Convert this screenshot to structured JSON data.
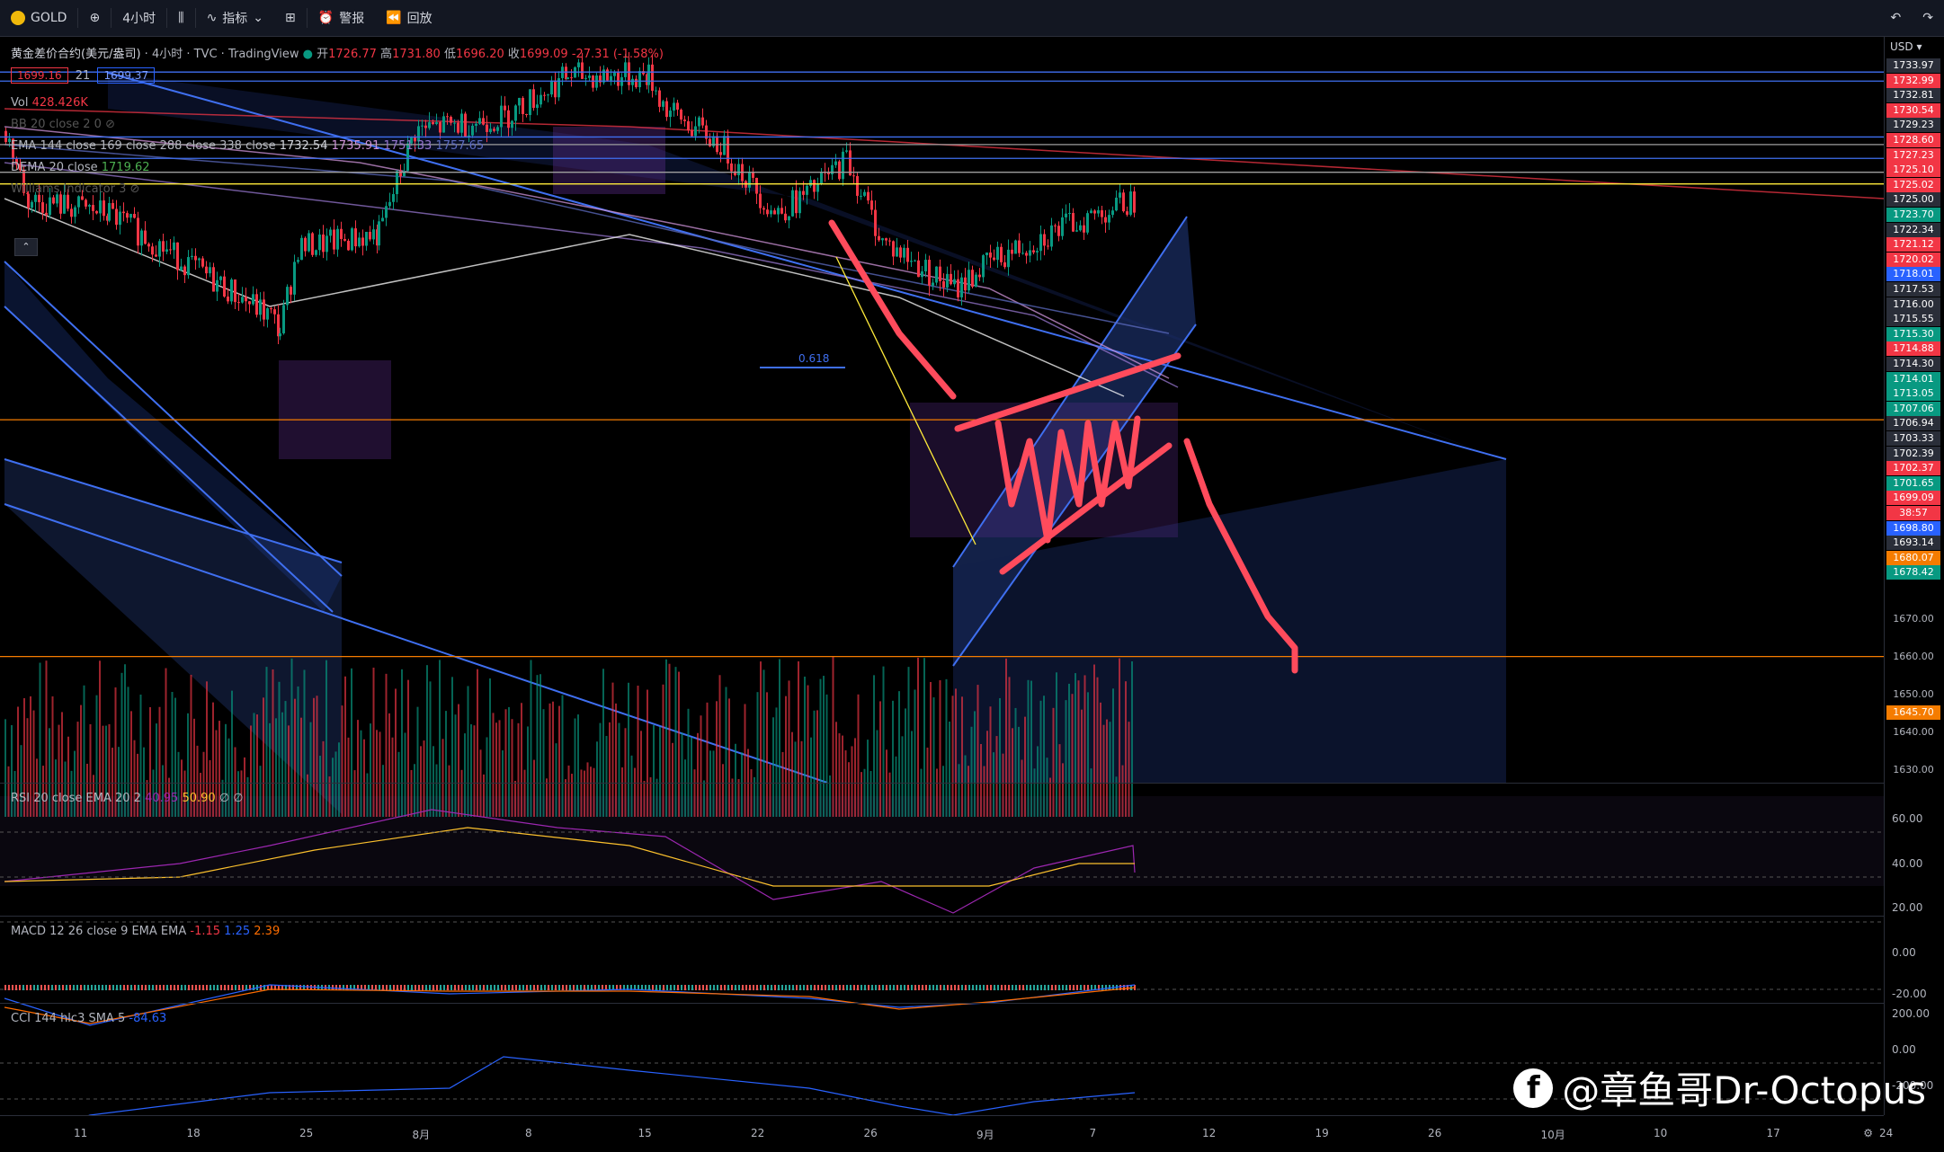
{
  "toolbar": {
    "symbol": "GOLD",
    "interval": "4小时",
    "indicators_label": "指标",
    "alert_label": "警报",
    "replay_label": "回放"
  },
  "header": {
    "title": "黄金差价合约(美元/盎司)",
    "interval": "4小时",
    "source": "TVC",
    "platform": "TradingView",
    "ohlc": {
      "open_label": "开",
      "open": "1726.77",
      "high_label": "高",
      "high": "1731.80",
      "low_label": "低",
      "low": "1696.20",
      "close_label": "收",
      "close": "1699.09",
      "change": "-27.31 (-1.58%)"
    },
    "bid": "1699.16",
    "spread": "21",
    "ask": "1699.37"
  },
  "indicators": {
    "vol": {
      "name": "Vol",
      "value": "428.426K"
    },
    "bb": {
      "name": "BB 20 close 2 0"
    },
    "ema": {
      "name": "EMA 144 close 169 close 288 close 338 close",
      "values": [
        "1732.54",
        "1735.91",
        "1751.33",
        "1757.65"
      ]
    },
    "dema": {
      "name": "DEMA 20 close",
      "value": "1719.62"
    },
    "williams": {
      "name": "Williams Indicator 3"
    },
    "rsi": {
      "name": "RSI 20 close EMA 20 2",
      "values": [
        "40.95",
        "50.90",
        "∅",
        "∅"
      ]
    },
    "macd": {
      "name": "MACD 12 26 close 9 EMA EMA",
      "values": [
        "-1.15",
        "1.25",
        "2.39"
      ]
    },
    "cci": {
      "name": "CCI 144 hlc3 SMA 5",
      "value": "-84.63"
    }
  },
  "price_axis": {
    "currency": "USD",
    "labels": [
      {
        "v": "1733.97",
        "c": "#2a2e39"
      },
      {
        "v": "1732.99",
        "c": "#f23645"
      },
      {
        "v": "1732.81",
        "c": "#2a2e39"
      },
      {
        "v": "1730.54",
        "c": "#f23645"
      },
      {
        "v": "1729.23",
        "c": "#2a2e39"
      },
      {
        "v": "1728.60",
        "c": "#f23645"
      },
      {
        "v": "1727.23",
        "c": "#f23645"
      },
      {
        "v": "1725.10",
        "c": "#f23645"
      },
      {
        "v": "1725.02",
        "c": "#f23645"
      },
      {
        "v": "1725.00",
        "c": "#2a2e39"
      },
      {
        "v": "1723.70",
        "c": "#089981"
      },
      {
        "v": "1722.34",
        "c": "#2a2e39"
      },
      {
        "v": "1721.12",
        "c": "#f23645"
      },
      {
        "v": "1720.02",
        "c": "#f23645"
      },
      {
        "v": "1718.01",
        "c": "#2962ff"
      },
      {
        "v": "1717.53",
        "c": "#2a2e39"
      },
      {
        "v": "1716.00",
        "c": "#2a2e39"
      },
      {
        "v": "1715.55",
        "c": "#2a2e39"
      },
      {
        "v": "1715.30",
        "c": "#089981"
      },
      {
        "v": "1714.88",
        "c": "#f23645"
      },
      {
        "v": "1714.30",
        "c": "#2a2e39"
      },
      {
        "v": "1714.01",
        "c": "#089981"
      },
      {
        "v": "1713.05",
        "c": "#089981"
      },
      {
        "v": "1707.06",
        "c": "#089981"
      },
      {
        "v": "1706.94",
        "c": "#2a2e39"
      },
      {
        "v": "1703.33",
        "c": "#2a2e39"
      },
      {
        "v": "1702.39",
        "c": "#2a2e39"
      },
      {
        "v": "1702.37",
        "c": "#f23645"
      },
      {
        "v": "1701.65",
        "c": "#089981"
      },
      {
        "v": "1699.09",
        "c": "#f23645"
      },
      {
        "v": "38:57",
        "c": "#f23645"
      },
      {
        "v": "1698.80",
        "c": "#2962ff"
      },
      {
        "v": "1693.14",
        "c": "#2a2e39"
      },
      {
        "v": "1680.07",
        "c": "#f57c00"
      },
      {
        "v": "1678.42",
        "c": "#089981"
      }
    ],
    "ticks": [
      "1670.00",
      "1660.00",
      "1650.00",
      "1645.70",
      "1640.00",
      "1630.00"
    ],
    "rsi_ticks": [
      "60.00",
      "40.00",
      "20.00"
    ],
    "macd_ticks": [
      "0.00",
      "-20.00"
    ],
    "cci_ticks": [
      "200.00",
      "0.00",
      "-200.00"
    ]
  },
  "time_axis": [
    "11",
    "18",
    "25",
    "8月",
    "8",
    "15",
    "22",
    "26",
    "9月",
    "7",
    "12",
    "19",
    "26",
    "10月",
    "10",
    "17",
    "24"
  ],
  "watermark": "@章鱼哥Dr-Octopus",
  "watermark_icon": "facebook-icon",
  "fib_label": "0.618",
  "chart_data": {
    "type": "candlestick",
    "symbol": "GOLD",
    "interval": "4h",
    "ylim": [
      1630,
      1735
    ],
    "current_price": 1699.09,
    "horizontal_levels": [
      1730.54,
      1729.23,
      1721.12,
      1720.02,
      1718.01,
      1716.0,
      1714.3,
      1680.07,
      1645.7
    ]
  }
}
